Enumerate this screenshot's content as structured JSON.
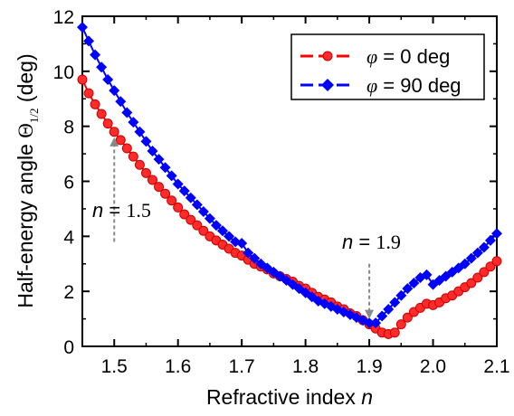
{
  "chart_data": {
    "type": "scatter",
    "xlabel": "Refractive index n",
    "xlabel_text": "Refractive index",
    "xlabel_var": "n",
    "ylabel": "Half-energy angle Θ1/2 (deg)",
    "ylabel_text": "Half-energy angle",
    "ylabel_symbol": "Θ",
    "ylabel_subscript": "1/2",
    "ylabel_unit": "(deg)",
    "xlim": [
      1.45,
      2.1
    ],
    "ylim": [
      0,
      12
    ],
    "xticks": [
      "1.5",
      "1.6",
      "1.7",
      "1.8",
      "1.9",
      "2.0",
      "2.1"
    ],
    "yticks": [
      "0",
      "2",
      "4",
      "6",
      "8",
      "10",
      "12"
    ],
    "grid": false,
    "legend_position": "top-right",
    "series": [
      {
        "name": "φ = 0 deg",
        "name_symbol": "φ",
        "name_rest": " = 0 deg",
        "color": "#ff0000",
        "marker": "circle",
        "x": [
          1.45,
          1.46,
          1.47,
          1.48,
          1.49,
          1.5,
          1.51,
          1.52,
          1.53,
          1.54,
          1.55,
          1.56,
          1.57,
          1.58,
          1.59,
          1.6,
          1.61,
          1.62,
          1.63,
          1.64,
          1.65,
          1.66,
          1.67,
          1.68,
          1.69,
          1.7,
          1.71,
          1.72,
          1.73,
          1.74,
          1.75,
          1.76,
          1.77,
          1.78,
          1.79,
          1.8,
          1.81,
          1.82,
          1.83,
          1.84,
          1.85,
          1.86,
          1.87,
          1.88,
          1.89,
          1.9,
          1.91,
          1.92,
          1.93,
          1.94,
          1.95,
          1.96,
          1.97,
          1.98,
          1.99,
          2.0,
          2.01,
          2.02,
          2.03,
          2.04,
          2.05,
          2.06,
          2.07,
          2.08,
          2.09,
          2.1
        ],
        "y": [
          9.7,
          9.2,
          8.8,
          8.45,
          8.1,
          7.8,
          7.5,
          7.2,
          6.9,
          6.6,
          6.3,
          6.05,
          5.8,
          5.55,
          5.3,
          5.05,
          4.8,
          4.6,
          4.4,
          4.2,
          4.0,
          3.85,
          3.7,
          3.55,
          3.4,
          3.3,
          3.15,
          3.0,
          2.9,
          2.8,
          2.65,
          2.55,
          2.45,
          2.35,
          2.2,
          2.1,
          1.95,
          1.8,
          1.7,
          1.6,
          1.45,
          1.35,
          1.2,
          1.1,
          0.95,
          0.8,
          0.65,
          0.5,
          0.45,
          0.5,
          0.8,
          1.05,
          1.25,
          1.4,
          1.55,
          1.5,
          1.6,
          1.75,
          1.85,
          2.0,
          2.15,
          2.3,
          2.5,
          2.7,
          2.9,
          3.1
        ]
      },
      {
        "name": "φ = 90 deg",
        "name_symbol": "φ",
        "name_rest": " = 90 deg",
        "color": "#0000ff",
        "marker": "diamond",
        "x": [
          1.45,
          1.46,
          1.47,
          1.48,
          1.49,
          1.5,
          1.51,
          1.52,
          1.53,
          1.54,
          1.55,
          1.56,
          1.57,
          1.58,
          1.59,
          1.6,
          1.61,
          1.62,
          1.63,
          1.64,
          1.65,
          1.66,
          1.67,
          1.68,
          1.69,
          1.7,
          1.71,
          1.72,
          1.73,
          1.74,
          1.75,
          1.76,
          1.77,
          1.78,
          1.79,
          1.8,
          1.81,
          1.82,
          1.83,
          1.84,
          1.85,
          1.86,
          1.87,
          1.88,
          1.89,
          1.9,
          1.91,
          1.92,
          1.93,
          1.94,
          1.95,
          1.96,
          1.97,
          1.98,
          1.99,
          2.0,
          2.01,
          2.02,
          2.03,
          2.04,
          2.05,
          2.06,
          2.07,
          2.08,
          2.09,
          2.1
        ],
        "y": [
          11.6,
          11.1,
          10.6,
          10.15,
          9.7,
          9.3,
          8.9,
          8.5,
          8.15,
          7.8,
          7.45,
          7.1,
          6.8,
          6.5,
          6.2,
          5.9,
          5.65,
          5.4,
          5.15,
          4.9,
          4.65,
          4.4,
          4.2,
          4.0,
          3.8,
          3.75,
          3.4,
          3.2,
          3.0,
          2.85,
          2.7,
          2.55,
          2.4,
          2.25,
          2.1,
          1.95,
          1.8,
          1.65,
          1.55,
          1.45,
          1.35,
          1.25,
          1.15,
          1.05,
          0.95,
          0.85,
          0.85,
          1.1,
          1.35,
          1.6,
          1.85,
          2.1,
          2.3,
          2.5,
          2.6,
          2.25,
          2.4,
          2.55,
          2.7,
          2.85,
          3.0,
          3.2,
          3.4,
          3.6,
          3.85,
          4.1
        ]
      }
    ],
    "annotations": [
      {
        "label_var": "n",
        "label_eq": " = ",
        "label_value": "1.5",
        "x": 1.5,
        "arrow_from_y": 3.8,
        "arrow_to_y": 7.6
      },
      {
        "label_var": "n",
        "label_eq": " = ",
        "label_value": "1.9",
        "x": 1.9,
        "arrow_from_y": 3.0,
        "arrow_to_y": 1.0
      }
    ]
  }
}
